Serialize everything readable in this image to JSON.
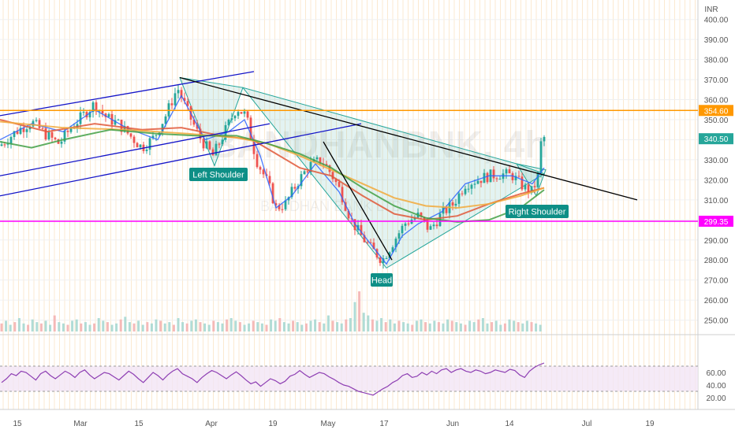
{
  "watermark": {
    "symbol": "BANDHANBNK, 4h",
    "description": "BANDHAN BANK LTD"
  },
  "currency_label": "INR",
  "colors": {
    "up": "#26a69a",
    "down": "#ef5350",
    "ema_fast": "#2962ff",
    "ema_mid": "#e0583a",
    "ema_slow": "#f2a93b",
    "sma": "#43a047",
    "resistance": "#ff9800",
    "support": "#ff00ff",
    "channel": "#1414c8",
    "pattern_fill": "#26a69a",
    "rsi": "#8e3fb3",
    "rsi_band": "#f3e5f5"
  },
  "chart_data": [
    {
      "type": "candlestick",
      "title": "",
      "yaxis": {
        "min": 245,
        "max": 405,
        "ticks": [
          250,
          260,
          270,
          280,
          290,
          300,
          310,
          320,
          330,
          340,
          350,
          360,
          370,
          380,
          390,
          400
        ]
      },
      "ytick_labels": [
        "250.00",
        "260.00",
        "270.00",
        "280.00",
        "290.00",
        "300.00",
        "310.00",
        "320.00",
        "330.00",
        "340.00",
        "350.00",
        "360.00",
        "370.00",
        "380.00",
        "390.00",
        "400.00"
      ],
      "xaxis": {
        "ticks": [
          "15",
          "Mar",
          "15",
          "Apr",
          "19",
          "May",
          "17",
          "Jun",
          "14",
          "Jul",
          "19"
        ]
      },
      "price_labels": [
        {
          "text": "354.60",
          "value": 354.6,
          "color": "#ff9800"
        },
        {
          "text": "340.50",
          "value": 340.5,
          "color": "#26a69a"
        },
        {
          "text": "299.35",
          "value": 299.35,
          "color": "#ff00ff"
        }
      ],
      "horizontal_levels": [
        {
          "value": 354.6,
          "color": "#ff9800"
        },
        {
          "value": 299.35,
          "color": "#ff00ff"
        }
      ],
      "annotations": [
        {
          "text": "Left Shoulder",
          "x": "Apr",
          "y": 328
        },
        {
          "text": "Head",
          "x": "May 17",
          "y": 275
        },
        {
          "text": "Right Shoulder",
          "x": "Jun 14",
          "y": 307
        }
      ],
      "series": [
        {
          "kind": "price_path",
          "points": [
            [
              0,
              337
            ],
            [
              20,
              344
            ],
            [
              40,
              349
            ],
            [
              60,
              342
            ],
            [
              75,
              338
            ],
            [
              90,
              346
            ],
            [
              105,
              352
            ],
            [
              120,
              358
            ],
            [
              135,
              351
            ],
            [
              150,
              348
            ],
            [
              165,
              342
            ],
            [
              180,
              336
            ],
            [
              195,
              341
            ],
            [
              210,
              352
            ],
            [
              225,
              366
            ],
            [
              240,
              352
            ],
            [
              255,
              340
            ],
            [
              270,
              332
            ],
            [
              285,
              344
            ],
            [
              300,
              356
            ],
            [
              312,
              352
            ],
            [
              325,
              330
            ],
            [
              340,
              318
            ],
            [
              350,
              306
            ],
            [
              362,
              308
            ],
            [
              376,
              318
            ],
            [
              392,
              327
            ],
            [
              408,
              330
            ],
            [
              420,
              323
            ],
            [
              432,
              314
            ],
            [
              445,
              300
            ],
            [
              458,
              292
            ],
            [
              470,
              286
            ],
            [
              485,
              280
            ],
            [
              500,
              290
            ],
            [
              515,
              299
            ],
            [
              530,
              302
            ],
            [
              545,
              295
            ],
            [
              560,
              303
            ],
            [
              575,
              308
            ],
            [
              590,
              318
            ],
            [
              605,
              320
            ],
            [
              620,
              322
            ],
            [
              635,
              323
            ],
            [
              650,
              322
            ],
            [
              665,
              316
            ],
            [
              675,
              314
            ],
            [
              682,
              322
            ],
            [
              686,
              338
            ],
            [
              690,
              341
            ]
          ]
        },
        {
          "kind": "ema_fast",
          "points": [
            [
              0,
              340
            ],
            [
              40,
              348
            ],
            [
              80,
              344
            ],
            [
              120,
              355
            ],
            [
              160,
              346
            ],
            [
              200,
              340
            ],
            [
              230,
              362
            ],
            [
              260,
              340
            ],
            [
              290,
              344
            ],
            [
              310,
              350
            ],
            [
              330,
              332
            ],
            [
              350,
              306
            ],
            [
              370,
              312
            ],
            [
              400,
              328
            ],
            [
              430,
              314
            ],
            [
              450,
              298
            ],
            [
              470,
              288
            ],
            [
              490,
              278
            ],
            [
              510,
              292
            ],
            [
              530,
              298
            ],
            [
              560,
              304
            ],
            [
              590,
              318
            ],
            [
              620,
              322
            ],
            [
              650,
              322
            ],
            [
              675,
              318
            ],
            [
              690,
              326
            ]
          ]
        },
        {
          "kind": "ema_mid",
          "points": [
            [
              0,
              350
            ],
            [
              60,
              344
            ],
            [
              120,
              348
            ],
            [
              180,
              345
            ],
            [
              230,
              346
            ],
            [
              280,
              342
            ],
            [
              320,
              340
            ],
            [
              350,
              333
            ],
            [
              380,
              326
            ],
            [
              420,
              322
            ],
            [
              460,
              312
            ],
            [
              500,
              303
            ],
            [
              540,
              300
            ],
            [
              580,
              302
            ],
            [
              620,
              308
            ],
            [
              660,
              313
            ],
            [
              690,
              316
            ]
          ]
        },
        {
          "kind": "ema_slow",
          "points": [
            [
              0,
              349
            ],
            [
              80,
              346
            ],
            [
              160,
              345
            ],
            [
              240,
              343
            ],
            [
              300,
              341
            ],
            [
              340,
              338
            ],
            [
              380,
              332
            ],
            [
              420,
              325
            ],
            [
              460,
              318
            ],
            [
              500,
              311
            ],
            [
              540,
              307
            ],
            [
              580,
              306
            ],
            [
              620,
              308
            ],
            [
              660,
              312
            ],
            [
              690,
              316
            ]
          ]
        },
        {
          "kind": "sma",
          "points": [
            [
              0,
              339
            ],
            [
              40,
              336
            ],
            [
              80,
              340
            ],
            [
              140,
              345
            ],
            [
              200,
              343
            ],
            [
              250,
              342
            ],
            [
              300,
              342
            ],
            [
              340,
              338
            ],
            [
              380,
              333
            ],
            [
              420,
              326
            ],
            [
              460,
              316
            ],
            [
              500,
              307
            ],
            [
              540,
              301
            ],
            [
              580,
              299
            ],
            [
              620,
              300
            ],
            [
              660,
              306
            ],
            [
              690,
              315
            ]
          ]
        }
      ],
      "trendlines": [
        {
          "name": "channel-upper",
          "from": [
            0,
            352
          ],
          "to": [
            322,
            374
          ]
        },
        {
          "name": "channel-mid",
          "from": [
            0,
            322
          ],
          "to": [
            342,
            348
          ]
        },
        {
          "name": "channel-lower",
          "from": [
            0,
            312
          ],
          "to": [
            458,
            348
          ]
        },
        {
          "name": "neckline",
          "from": [
            228,
            371
          ],
          "to": [
            808,
            310
          ]
        },
        {
          "name": "drop-line",
          "from": [
            410,
            339
          ],
          "to": [
            497,
            280
          ]
        }
      ],
      "volume": [
        6,
        8,
        5,
        7,
        10,
        6,
        5,
        9,
        7,
        6,
        8,
        5,
        12,
        7,
        6,
        5,
        8,
        9,
        6,
        7,
        5,
        6,
        10,
        8,
        7,
        5,
        6,
        9,
        11,
        7,
        6,
        8,
        5,
        7,
        6,
        9,
        8,
        6,
        7,
        5,
        10,
        7,
        6,
        8,
        9,
        7,
        6,
        5,
        8,
        7,
        6,
        9,
        10,
        8,
        7,
        5,
        6,
        8,
        7,
        6,
        5,
        9,
        8,
        10,
        7,
        6,
        8,
        7,
        5,
        6,
        8,
        9,
        7,
        6,
        12,
        8,
        7,
        6,
        9,
        10,
        22,
        30,
        14,
        12,
        9,
        8,
        10,
        7,
        9,
        6,
        8,
        7,
        6,
        5,
        8,
        9,
        7,
        6,
        8,
        7,
        6,
        9,
        8,
        7,
        6,
        5,
        8,
        7,
        9,
        10,
        6,
        7,
        8,
        5,
        6,
        9,
        8,
        7,
        6,
        8,
        7,
        6,
        5,
        9,
        14,
        36
      ]
    },
    {
      "type": "line",
      "title": "",
      "yaxis": {
        "min": 15,
        "max": 78,
        "ticks": [
          20,
          40,
          60
        ]
      },
      "ytick_labels": [
        "20.00",
        "40.00",
        "60.00"
      ],
      "band": [
        30,
        70
      ],
      "rsi": [
        44,
        50,
        58,
        55,
        62,
        60,
        54,
        48,
        58,
        62,
        55,
        50,
        56,
        62,
        58,
        52,
        60,
        64,
        56,
        50,
        55,
        60,
        58,
        53,
        48,
        55,
        62,
        57,
        50,
        44,
        52,
        60,
        55,
        48,
        56,
        62,
        66,
        58,
        54,
        50,
        44,
        52,
        58,
        63,
        60,
        55,
        50,
        56,
        61,
        55,
        48,
        42,
        45,
        38,
        44,
        50,
        47,
        42,
        46,
        54,
        57,
        63,
        57,
        52,
        56,
        60,
        58,
        53,
        49,
        44,
        40,
        38,
        34,
        30,
        28,
        26,
        24,
        29,
        34,
        38,
        44,
        48,
        55,
        58,
        52,
        54,
        60,
        56,
        62,
        58,
        64,
        66,
        60,
        64,
        66,
        62,
        60,
        64,
        62,
        58,
        60,
        64,
        62,
        60,
        65,
        63,
        56,
        52,
        62,
        68,
        72,
        75
      ]
    }
  ]
}
